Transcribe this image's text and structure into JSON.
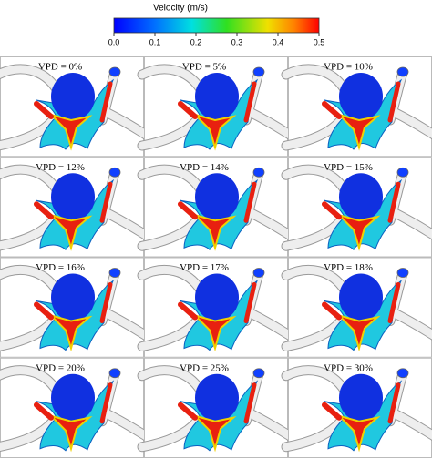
{
  "colorbar": {
    "title": "Velocity (m/s)",
    "lim": [
      0,
      0.5
    ],
    "ticks": [
      {
        "value": 0,
        "label": "0.0"
      },
      {
        "value": 0.1,
        "label": "0.1"
      },
      {
        "value": 0.2,
        "label": "0.2"
      },
      {
        "value": 0.3,
        "label": "0.3"
      },
      {
        "value": 0.4,
        "label": "0.4"
      },
      {
        "value": 0.5,
        "label": "0.5"
      }
    ]
  },
  "panels": [
    {
      "label": "VPD = 0%"
    },
    {
      "label": "VPD = 5%"
    },
    {
      "label": "VPD = 10%"
    },
    {
      "label": "VPD = 12%"
    },
    {
      "label": "VPD = 14%"
    },
    {
      "label": "VPD = 15%"
    },
    {
      "label": "VPD = 16%"
    },
    {
      "label": "VPD = 17%"
    },
    {
      "label": "VPD = 18%"
    },
    {
      "label": "VPD = 20%"
    },
    {
      "label": "VPD = 25%"
    },
    {
      "label": "VPD = 30%"
    }
  ]
}
